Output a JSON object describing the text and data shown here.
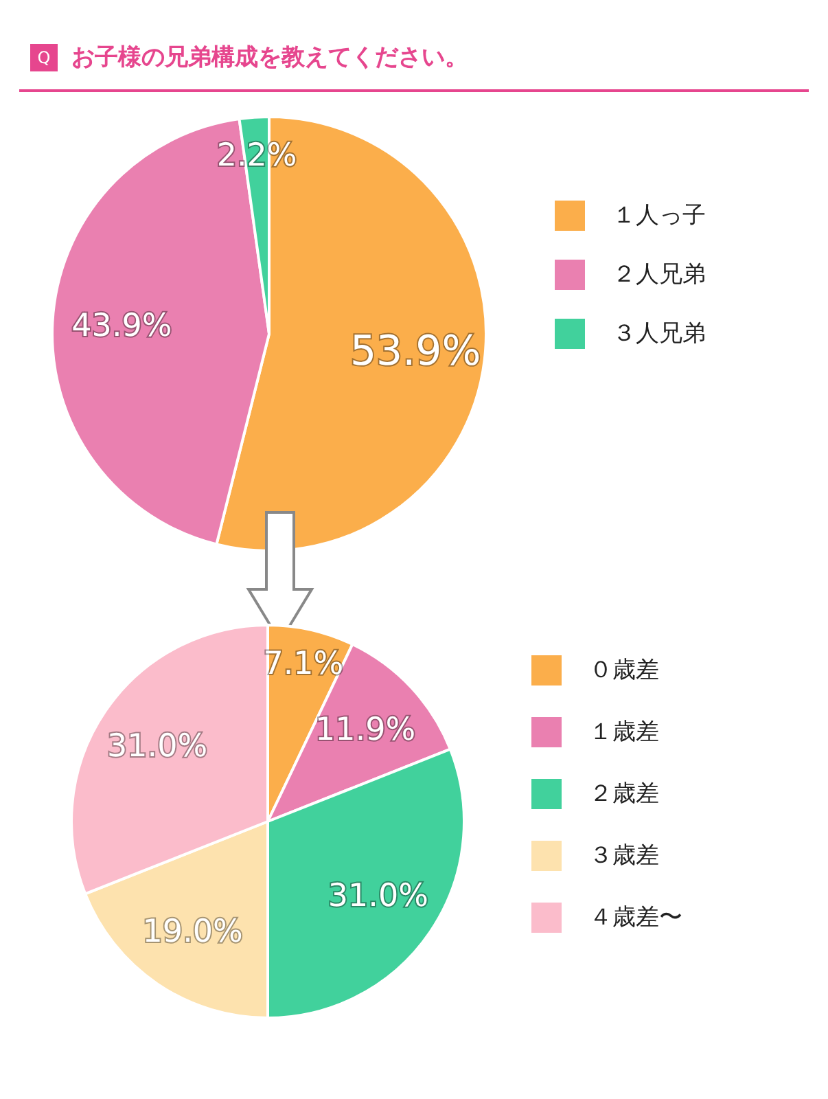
{
  "chart_data": [
    {
      "type": "pie",
      "title": "お子様の兄弟構成を教えてください。",
      "annotations": [
        "Q"
      ],
      "categories": [
        "１人っ子",
        "２人兄弟",
        "３人兄弟"
      ],
      "values": [
        53.9,
        43.9,
        2.2
      ],
      "value_labels": [
        "53.9%",
        "43.9%",
        "2.2%"
      ],
      "colors": [
        "#fbae4b",
        "#ea80b0",
        "#41d19c"
      ],
      "legend": "right"
    },
    {
      "type": "pie",
      "categories": [
        "０歳差",
        "１歳差",
        "２歳差",
        "３歳差",
        "４歳差〜"
      ],
      "values": [
        7.1,
        11.9,
        31.0,
        19.0,
        31.0
      ],
      "value_labels": [
        "7.1%",
        "11.9%",
        "31.0%",
        "19.0%",
        "31.0%"
      ],
      "colors": [
        "#fbae4b",
        "#ea80b0",
        "#41d19c",
        "#fde2ae",
        "#fbbccb"
      ],
      "legend": "right"
    }
  ]
}
